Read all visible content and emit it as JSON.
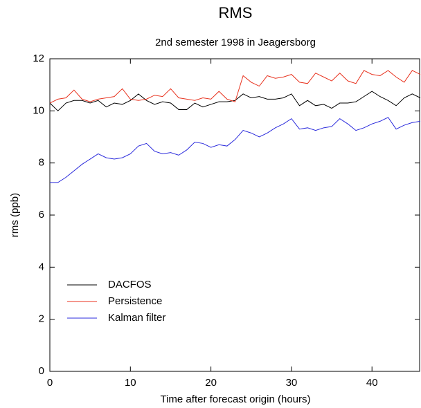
{
  "chart_data": {
    "type": "line",
    "title": "RMS",
    "subtitle": "2nd semester 1998 in Jeagersborg",
    "x_label": "Time after forecast origin (hours)",
    "y_label": "rms (ppb)",
    "x": [
      0,
      1,
      2,
      3,
      4,
      5,
      6,
      7,
      8,
      9,
      10,
      11,
      12,
      13,
      14,
      15,
      16,
      17,
      18,
      19,
      20,
      21,
      22,
      23,
      24,
      25,
      26,
      27,
      28,
      29,
      30,
      31,
      32,
      33,
      34,
      35,
      36,
      37,
      38,
      39,
      40,
      41,
      42,
      43,
      44,
      45,
      46
    ],
    "series": [
      {
        "name": "DACFOS",
        "color": "#000000",
        "values": [
          10.3,
          10.0,
          10.3,
          10.4,
          10.4,
          10.3,
          10.4,
          10.15,
          10.3,
          10.25,
          10.4,
          10.65,
          10.4,
          10.25,
          10.35,
          10.3,
          10.05,
          10.05,
          10.3,
          10.15,
          10.25,
          10.35,
          10.35,
          10.4,
          10.65,
          10.5,
          10.55,
          10.45,
          10.45,
          10.5,
          10.65,
          10.2,
          10.4,
          10.2,
          10.25,
          10.1,
          10.3,
          10.3,
          10.35,
          10.55,
          10.75,
          10.55,
          10.4,
          10.2,
          10.5,
          10.65,
          10.5
        ]
      },
      {
        "name": "Persistence",
        "color": "#e8321e",
        "values": [
          10.3,
          10.45,
          10.5,
          10.8,
          10.45,
          10.35,
          10.45,
          10.5,
          10.55,
          10.85,
          10.45,
          10.4,
          10.45,
          10.6,
          10.55,
          10.85,
          10.5,
          10.45,
          10.4,
          10.5,
          10.45,
          10.75,
          10.45,
          10.35,
          11.35,
          11.1,
          10.95,
          11.35,
          11.25,
          11.3,
          11.4,
          11.1,
          11.05,
          11.45,
          11.3,
          11.15,
          11.45,
          11.15,
          11.05,
          11.55,
          11.4,
          11.35,
          11.55,
          11.3,
          11.1,
          11.55,
          11.4
        ]
      },
      {
        "name": "Kalman filter",
        "color": "#2a2adc",
        "values": [
          7.25,
          7.25,
          7.45,
          7.7,
          7.95,
          8.15,
          8.35,
          8.2,
          8.15,
          8.2,
          8.35,
          8.65,
          8.75,
          8.45,
          8.35,
          8.4,
          8.3,
          8.5,
          8.8,
          8.75,
          8.6,
          8.7,
          8.65,
          8.9,
          9.25,
          9.15,
          9.0,
          9.15,
          9.35,
          9.5,
          9.7,
          9.3,
          9.35,
          9.25,
          9.35,
          9.4,
          9.7,
          9.5,
          9.25,
          9.35,
          9.5,
          9.6,
          9.75,
          9.3,
          9.45,
          9.55,
          9.6
        ]
      }
    ],
    "xlim": [
      0,
      46
    ],
    "xticks": [
      0,
      10,
      20,
      30,
      40
    ],
    "ylim": [
      0,
      12
    ],
    "yticks": [
      0,
      2,
      4,
      6,
      8,
      10,
      12
    ],
    "grid": false,
    "legend": "lower left"
  }
}
